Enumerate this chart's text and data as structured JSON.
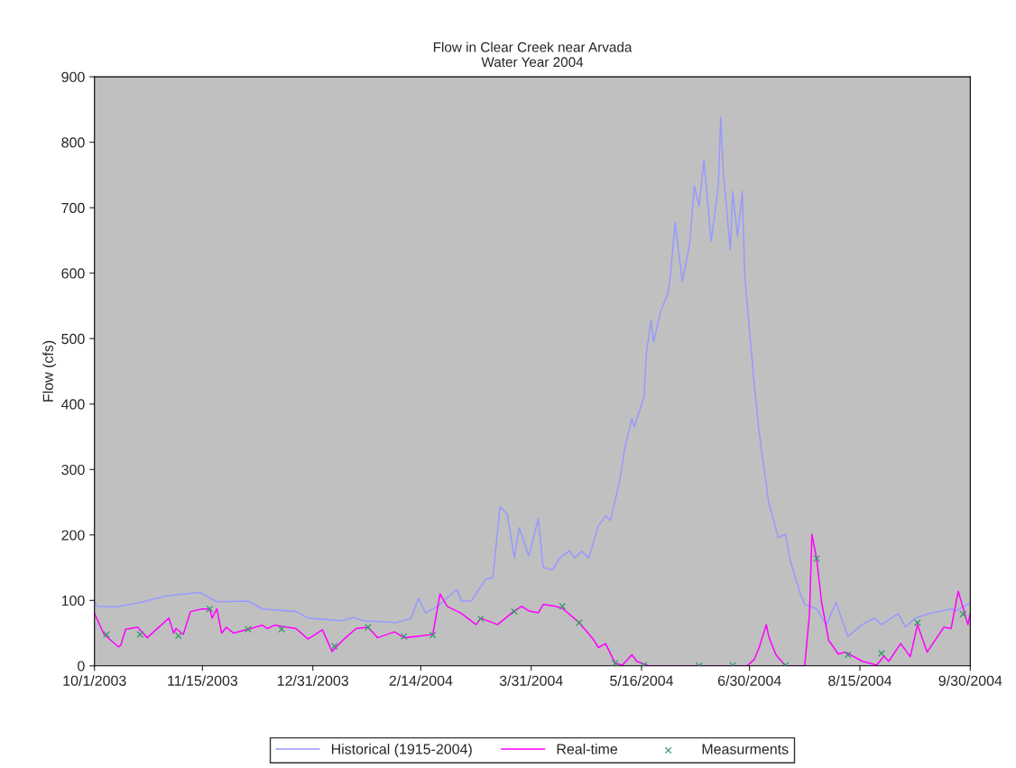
{
  "chart_data": {
    "type": "line",
    "title": "Flow in Clear Creek near Arvada",
    "subtitle": "Water Year 2004",
    "ylabel": "Flow (cfs)",
    "xlim": [
      "2003-10-01",
      "2004-09-30"
    ],
    "xticks": [
      {
        "value": "2003-10-01",
        "label": "10/1/2003"
      },
      {
        "value": "2003-11-15",
        "label": "11/15/2003"
      },
      {
        "value": "2003-12-31",
        "label": "12/31/2003"
      },
      {
        "value": "2004-02-14",
        "label": "2/14/2004"
      },
      {
        "value": "2004-03-31",
        "label": "3/31/2004"
      },
      {
        "value": "2004-05-16",
        "label": "5/16/2004"
      },
      {
        "value": "2004-06-30",
        "label": "6/30/2004"
      },
      {
        "value": "2004-08-15",
        "label": "8/15/2004"
      },
      {
        "value": "2004-09-30",
        "label": "9/30/2004"
      }
    ],
    "ylim": [
      0,
      900
    ],
    "yticks": [
      0,
      100,
      200,
      300,
      400,
      500,
      600,
      700,
      800,
      900
    ],
    "grid": false,
    "legend": "bottom",
    "series": [
      {
        "name": "Historical (1915-2004)",
        "color": "#9999ff",
        "marker": "none",
        "x": [
          "2003-10-01",
          "2003-10-02",
          "2003-10-10",
          "2003-10-19",
          "2003-10-31",
          "2003-11-08",
          "2003-11-14",
          "2003-11-21",
          "2003-12-04",
          "2003-12-10",
          "2003-12-24",
          "2003-12-29",
          "2004-01-12",
          "2004-01-17",
          "2004-01-21",
          "2004-02-04",
          "2004-02-10",
          "2004-02-13",
          "2004-02-16",
          "2004-02-21",
          "2004-02-29",
          "2004-03-02",
          "2004-03-06",
          "2004-03-12",
          "2004-03-15",
          "2004-03-18",
          "2004-03-21",
          "2004-03-24",
          "2004-03-26",
          "2004-03-30",
          "2004-04-03",
          "2004-04-05",
          "2004-04-09",
          "2004-04-12",
          "2004-04-16",
          "2004-04-18",
          "2004-04-21",
          "2004-04-24",
          "2004-04-28",
          "2004-05-01",
          "2004-05-03",
          "2004-05-07",
          "2004-05-09",
          "2004-05-12",
          "2004-05-13",
          "2004-05-17",
          "2004-05-18",
          "2004-05-20",
          "2004-05-21",
          "2004-05-24",
          "2004-05-27",
          "2004-05-28",
          "2004-05-30",
          "2004-06-02",
          "2004-06-05",
          "2004-06-07",
          "2004-06-09",
          "2004-06-11",
          "2004-06-14",
          "2004-06-17",
          "2004-06-18",
          "2004-06-19",
          "2004-06-22",
          "2004-06-23",
          "2004-06-25",
          "2004-06-27",
          "2004-06-28",
          "2004-07-02",
          "2004-07-04",
          "2004-07-08",
          "2004-07-12",
          "2004-07-15",
          "2004-07-17",
          "2004-07-21",
          "2004-07-23",
          "2004-07-28",
          "2004-08-01",
          "2004-08-05",
          "2004-08-10",
          "2004-08-16",
          "2004-08-21",
          "2004-08-24",
          "2004-08-31",
          "2004-09-03",
          "2004-09-07",
          "2004-09-13",
          "2004-09-22",
          "2004-09-24",
          "2004-09-30"
        ],
        "values": [
          98,
          91,
          90,
          96,
          107,
          110,
          112,
          98,
          99,
          87,
          83,
          73,
          69,
          74,
          69,
          66,
          73,
          103,
          81,
          91,
          117,
          99,
          99,
          132,
          135,
          243,
          232,
          165,
          211,
          168,
          225,
          150,
          147,
          165,
          176,
          165,
          175,
          165,
          214,
          229,
          222,
          285,
          333,
          378,
          365,
          411,
          477,
          528,
          495,
          542,
          569,
          595,
          677,
          587,
          644,
          733,
          703,
          772,
          649,
          733,
          838,
          758,
          635,
          725,
          656,
          725,
          595,
          429,
          357,
          249,
          196,
          201,
          160,
          112,
          94,
          87,
          62,
          97,
          45,
          63,
          73,
          63,
          80,
          59,
          73,
          80,
          87,
          84,
          96
        ]
      },
      {
        "name": "Real-time",
        "color": "#ff00ff",
        "marker": "none",
        "x": [
          "2003-10-01",
          "2003-10-05",
          "2003-10-11",
          "2003-10-12",
          "2003-10-14",
          "2003-10-19",
          "2003-10-23",
          "2003-11-01",
          "2003-11-03",
          "2003-11-04",
          "2003-11-07",
          "2003-11-10",
          "2003-11-15",
          "2003-11-18",
          "2003-11-19",
          "2003-11-21",
          "2003-11-23",
          "2003-11-25",
          "2003-11-28",
          "2003-12-05",
          "2003-12-10",
          "2003-12-12",
          "2003-12-15",
          "2003-12-24",
          "2003-12-29",
          "2004-01-04",
          "2004-01-08",
          "2004-01-13",
          "2004-01-18",
          "2004-01-23",
          "2004-01-27",
          "2004-02-03",
          "2004-02-07",
          "2004-02-12",
          "2004-02-19",
          "2004-02-22",
          "2004-02-25",
          "2004-03-02",
          "2004-03-08",
          "2004-03-10",
          "2004-03-17",
          "2004-03-24",
          "2004-03-27",
          "2004-03-30",
          "2004-04-03",
          "2004-04-05",
          "2004-04-10",
          "2004-04-13",
          "2004-04-20",
          "2004-04-26",
          "2004-04-28",
          "2004-05-01",
          "2004-05-05",
          "2004-05-08",
          "2004-05-12",
          "2004-05-14",
          "2004-05-16",
          "2004-05-19",
          "2004-06-29",
          "2004-07-02",
          "2004-07-04",
          "2004-07-07",
          "2004-07-08",
          "2004-07-11",
          "2004-07-15",
          "2004-07-23",
          "2004-07-25",
          "2004-07-26",
          "2004-07-28",
          "2004-07-30",
          "2004-08-02",
          "2004-08-06",
          "2004-08-09",
          "2004-08-16",
          "2004-08-22",
          "2004-08-25",
          "2004-08-27",
          "2004-09-01",
          "2004-09-05",
          "2004-09-08",
          "2004-09-12",
          "2004-09-19",
          "2004-09-22",
          "2004-09-25",
          "2004-09-29",
          "2004-09-30"
        ],
        "values": [
          80,
          48,
          29,
          32,
          56,
          59,
          43,
          73,
          50,
          57,
          48,
          83,
          87,
          87,
          73,
          87,
          50,
          59,
          50,
          57,
          62,
          57,
          62,
          57,
          41,
          55,
          22,
          41,
          57,
          59,
          43,
          52,
          43,
          45,
          48,
          110,
          91,
          80,
          63,
          73,
          63,
          84,
          91,
          84,
          81,
          94,
          91,
          88,
          66,
          40,
          28,
          34,
          4,
          1,
          17,
          7,
          4,
          0,
          0,
          10,
          28,
          63,
          45,
          17,
          0,
          0,
          80,
          201,
          163,
          98,
          39,
          18,
          21,
          7,
          1,
          15,
          7,
          34,
          14,
          63,
          21,
          59,
          57,
          114,
          63,
          80
        ]
      },
      {
        "name": "Measurments",
        "type": "scatter",
        "color": "#339966",
        "marker": "cross",
        "x": [
          "2003-10-06",
          "2003-10-20",
          "2003-11-05",
          "2003-11-18",
          "2003-12-04",
          "2003-12-18",
          "2004-01-09",
          "2004-01-23",
          "2004-02-07",
          "2004-02-19",
          "2004-03-10",
          "2004-03-24",
          "2004-04-13",
          "2004-04-20",
          "2004-05-05",
          "2004-05-17",
          "2004-06-09",
          "2004-06-23",
          "2004-07-15",
          "2004-07-28",
          "2004-08-10",
          "2004-08-24",
          "2004-09-08",
          "2004-09-27"
        ],
        "values": [
          48,
          48,
          46,
          87,
          56,
          56,
          30,
          59,
          45,
          47,
          72,
          83,
          91,
          66,
          4,
          1,
          0,
          1,
          1,
          164,
          17,
          19,
          66,
          79
        ]
      }
    ]
  }
}
